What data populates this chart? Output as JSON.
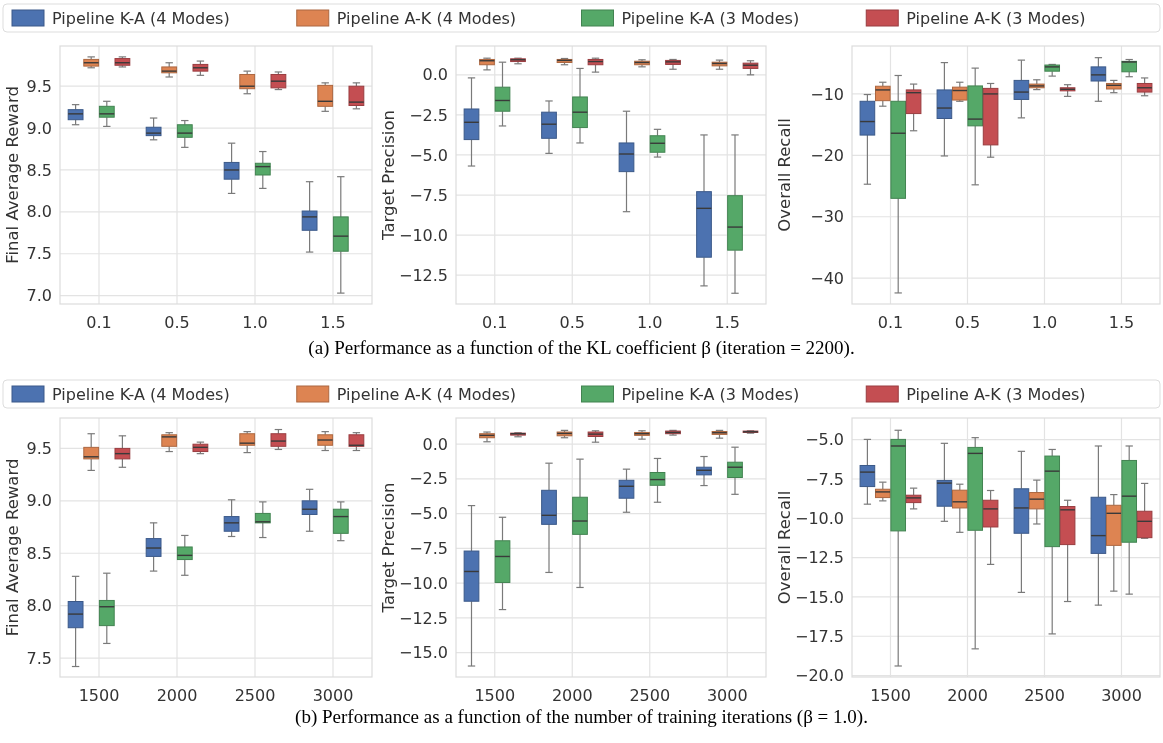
{
  "chart_data": [
    {
      "type": "box",
      "categories": [
        "0.1",
        "0.5",
        "1.0",
        "1.5"
      ],
      "ylabel": "Final Average Reward",
      "ylim": [
        6.9,
        9.98
      ],
      "yticks": [
        {
          "value": 7,
          "label": "7.0"
        },
        7.5,
        {
          "value": 8,
          "label": "8.0"
        },
        8.5,
        {
          "value": 9,
          "label": "9.0"
        },
        9.5
      ],
      "grid": true,
      "legend": "top",
      "annotations": [
        "(a) Performance as a function of the KL coefficient β (iteration = 2200)."
      ],
      "series": [
        {
          "name": "Pipeline K-A (4 Modes)",
          "color": "#4c72b0",
          "boxes": [
            {
              "low": 9.04,
              "q1": 9.1,
              "median": 9.17,
              "q3": 9.22,
              "high": 9.28
            },
            {
              "low": 8.86,
              "q1": 8.91,
              "median": 8.94,
              "q3": 9.01,
              "high": 9.12
            },
            {
              "low": 8.22,
              "q1": 8.39,
              "median": 8.5,
              "q3": 8.59,
              "high": 8.82
            },
            {
              "low": 7.52,
              "q1": 7.78,
              "median": 7.94,
              "q3": 8.01,
              "high": 8.36
            }
          ]
        },
        {
          "name": "Pipeline A-K (4 Modes)",
          "color": "#dd8452",
          "boxes": [
            {
              "low": 9.72,
              "q1": 9.74,
              "median": 9.78,
              "q3": 9.82,
              "high": 9.85
            },
            {
              "low": 9.61,
              "q1": 9.66,
              "median": 9.68,
              "q3": 9.73,
              "high": 9.78
            },
            {
              "low": 9.41,
              "q1": 9.47,
              "median": 9.5,
              "q3": 9.64,
              "high": 9.68
            },
            {
              "low": 9.2,
              "q1": 9.26,
              "median": 9.32,
              "q3": 9.51,
              "high": 9.54
            }
          ]
        },
        {
          "name": "Pipeline K-A (3 Modes)",
          "color": "#55a868",
          "boxes": [
            {
              "low": 9.02,
              "q1": 9.13,
              "median": 9.17,
              "q3": 9.26,
              "high": 9.32
            },
            {
              "low": 8.77,
              "q1": 8.89,
              "median": 8.94,
              "q3": 9.04,
              "high": 9.09
            },
            {
              "low": 8.28,
              "q1": 8.44,
              "median": 8.54,
              "q3": 8.58,
              "high": 8.72
            },
            {
              "low": 7.03,
              "q1": 7.53,
              "median": 7.71,
              "q3": 7.94,
              "high": 8.42
            }
          ]
        },
        {
          "name": "Pipeline A-K (3 Modes)",
          "color": "#c44e52",
          "boxes": [
            {
              "low": 9.73,
              "q1": 9.75,
              "median": 9.78,
              "q3": 9.83,
              "high": 9.85
            },
            {
              "low": 9.63,
              "q1": 9.68,
              "median": 9.72,
              "q3": 9.76,
              "high": 9.8
            },
            {
              "low": 9.46,
              "q1": 9.48,
              "median": 9.56,
              "q3": 9.64,
              "high": 9.67
            },
            {
              "low": 9.23,
              "q1": 9.27,
              "median": 9.31,
              "q3": 9.5,
              "high": 9.54
            }
          ]
        }
      ]
    },
    {
      "type": "box",
      "categories": [
        "0.1",
        "0.5",
        "1.0",
        "1.5"
      ],
      "ylabel": "Target Precision",
      "ylim": [
        -14.3,
        1.8
      ],
      "yticks": [
        {
          "value": -12.5,
          "label": "−12.5"
        },
        {
          "value": -10,
          "label": "−10.0"
        },
        {
          "value": -7.5,
          "label": "−7.5"
        },
        {
          "value": -5,
          "label": "−5.0"
        },
        {
          "value": -2.5,
          "label": "−2.5"
        },
        {
          "value": 0,
          "label": "0.0"
        }
      ],
      "grid": true,
      "series": [
        {
          "color": "#4c72b0",
          "boxes": [
            {
              "low": -5.69,
              "q1": -4.04,
              "median": -2.96,
              "q3": -2.13,
              "high": -0.19
            },
            {
              "low": -4.9,
              "q1": -3.96,
              "median": -3.08,
              "q3": -2.33,
              "high": -1.63
            },
            {
              "low": -8.54,
              "q1": -6.04,
              "median": -4.94,
              "q3": -4.25,
              "high": -2.27
            },
            {
              "low": -13.17,
              "q1": -11.38,
              "median": -8.33,
              "q3": -7.29,
              "high": -3.75
            }
          ]
        },
        {
          "color": "#dd8452",
          "boxes": [
            {
              "low": 0.31,
              "q1": 0.63,
              "median": 0.88,
              "q3": 0.96,
              "high": 1.04
            },
            {
              "low": 0.63,
              "q1": 0.77,
              "median": 0.9,
              "q3": 0.96,
              "high": 1.02
            },
            {
              "low": 0.5,
              "q1": 0.63,
              "median": 0.77,
              "q3": 0.85,
              "high": 0.94
            },
            {
              "low": 0.35,
              "q1": 0.56,
              "median": 0.71,
              "q3": 0.79,
              "high": 0.92
            }
          ]
        },
        {
          "color": "#55a868",
          "boxes": [
            {
              "low": -3.19,
              "q1": -2.27,
              "median": -1.6,
              "q3": -0.77,
              "high": 0.79
            },
            {
              "low": -4.25,
              "q1": -3.29,
              "median": -2.33,
              "q3": -1.38,
              "high": 0.4
            },
            {
              "low": -5.13,
              "q1": -4.83,
              "median": -4.27,
              "q3": -3.8,
              "high": -3.4
            },
            {
              "low": -13.63,
              "q1": -10.94,
              "median": -9.5,
              "q3": -7.54,
              "high": -3.75
            }
          ]
        },
        {
          "color": "#c44e52",
          "boxes": [
            {
              "low": 0.69,
              "q1": 0.83,
              "median": 0.94,
              "q3": 1.0,
              "high": 1.04
            },
            {
              "low": 0.17,
              "q1": 0.63,
              "median": 0.83,
              "q3": 0.96,
              "high": 1.04
            },
            {
              "low": 0.35,
              "q1": 0.65,
              "median": 0.81,
              "q3": 0.9,
              "high": 0.96
            },
            {
              "low": 0.0,
              "q1": 0.4,
              "median": 0.6,
              "q3": 0.73,
              "high": 0.88
            }
          ]
        }
      ]
    },
    {
      "type": "box",
      "categories": [
        "0.1",
        "0.5",
        "1.0",
        "1.5"
      ],
      "ylabel": "Overall Recall",
      "ylim": [
        -44.2,
        -2.2
      ],
      "yticks": [
        {
          "value": -40,
          "label": "−40"
        },
        {
          "value": -30,
          "label": "−30"
        },
        {
          "value": -20,
          "label": "−20"
        },
        {
          "value": -10,
          "label": "−10"
        }
      ],
      "grid": true,
      "series": [
        {
          "color": "#4c72b0",
          "boxes": [
            {
              "low": -24.7,
              "q1": -16.7,
              "median": -14.5,
              "q3": -11.2,
              "high": -10.1
            },
            {
              "low": -20.1,
              "q1": -14.0,
              "median": -12.3,
              "q3": -9.35,
              "high": -4.9
            },
            {
              "low": -13.9,
              "q1": -10.9,
              "median": -9.7,
              "q3": -7.8,
              "high": -4.5
            },
            {
              "low": -11.2,
              "q1": -7.9,
              "median": -6.9,
              "q3": -5.6,
              "high": -4.1
            }
          ]
        },
        {
          "color": "#dd8452",
          "boxes": [
            {
              "low": -12.0,
              "q1": -11.1,
              "median": -9.35,
              "q3": -8.75,
              "high": -8.1
            },
            {
              "low": -11.2,
              "q1": -11.0,
              "median": -9.45,
              "q3": -8.9,
              "high": -8.1
            },
            {
              "low": -9.3,
              "q1": -9.0,
              "median": -8.7,
              "q3": -8.4,
              "high": -7.7
            },
            {
              "low": -9.8,
              "q1": -9.2,
              "median": -8.6,
              "q3": -8.3,
              "high": -7.8
            }
          ]
        },
        {
          "color": "#55a868",
          "boxes": [
            {
              "low": -42.4,
              "q1": -27.0,
              "median": -16.4,
              "q3": -11.2,
              "high": -7.0
            },
            {
              "low": -24.8,
              "q1": -15.2,
              "median": -14.1,
              "q3": -8.7,
              "high": -5.8
            },
            {
              "low": -7.1,
              "q1": -6.3,
              "median": -5.6,
              "q3": -5.3,
              "high": -5.2
            },
            {
              "low": -7.2,
              "q1": -6.4,
              "median": -4.8,
              "q3": -4.7,
              "high": -4.4
            }
          ]
        },
        {
          "color": "#c44e52",
          "boxes": [
            {
              "low": -16.0,
              "q1": -13.2,
              "median": -9.8,
              "q3": -9.35,
              "high": -8.4
            },
            {
              "low": -20.3,
              "q1": -18.3,
              "median": -10.0,
              "q3": -9.1,
              "high": -8.3
            },
            {
              "low": -10.4,
              "q1": -9.5,
              "median": -9.25,
              "q3": -9.0,
              "high": -8.5
            },
            {
              "low": -10.3,
              "q1": -9.7,
              "median": -9.0,
              "q3": -8.3,
              "high": -7.4
            }
          ]
        }
      ]
    },
    {
      "type": "box",
      "categories": [
        "1500",
        "2000",
        "2500",
        "3000"
      ],
      "ylabel": "Final Average Reward",
      "ylim": [
        7.32,
        9.79
      ],
      "yticks": [
        7.5,
        {
          "value": 8,
          "label": "8.0"
        },
        8.5,
        {
          "value": 9,
          "label": "9.0"
        },
        9.5
      ],
      "grid": true,
      "legend": "top",
      "annotations": [
        "(b) Performance as a function of the number of training iterations (β = 1.0)."
      ],
      "series": [
        {
          "name": "Pipeline K-A (4 Modes)",
          "color": "#4c72b0",
          "boxes": [
            {
              "low": 7.42,
              "q1": 7.79,
              "median": 7.92,
              "q3": 8.04,
              "high": 8.28
            },
            {
              "low": 8.33,
              "q1": 8.47,
              "median": 8.55,
              "q3": 8.64,
              "high": 8.79
            },
            {
              "low": 8.66,
              "q1": 8.71,
              "median": 8.79,
              "q3": 8.85,
              "high": 9.01
            },
            {
              "low": 8.71,
              "q1": 8.87,
              "median": 8.92,
              "q3": 9.0,
              "high": 9.11
            }
          ]
        },
        {
          "name": "Pipeline A-K (4 Modes)",
          "color": "#dd8452",
          "boxes": [
            {
              "low": 9.29,
              "q1": 9.4,
              "median": 9.42,
              "q3": 9.51,
              "high": 9.64
            },
            {
              "low": 9.47,
              "q1": 9.52,
              "median": 9.61,
              "q3": 9.63,
              "high": 9.65
            },
            {
              "low": 9.46,
              "q1": 9.53,
              "median": 9.55,
              "q3": 9.64,
              "high": 9.66
            },
            {
              "low": 9.48,
              "q1": 9.53,
              "median": 9.58,
              "q3": 9.63,
              "high": 9.66
            }
          ]
        },
        {
          "name": "Pipeline K-A (3 Modes)",
          "color": "#55a868",
          "boxes": [
            {
              "low": 7.64,
              "q1": 7.81,
              "median": 7.99,
              "q3": 8.05,
              "high": 8.31
            },
            {
              "low": 8.29,
              "q1": 8.44,
              "median": 8.48,
              "q3": 8.56,
              "high": 8.67
            },
            {
              "low": 8.65,
              "q1": 8.79,
              "median": 8.8,
              "q3": 8.88,
              "high": 8.99
            },
            {
              "low": 8.62,
              "q1": 8.69,
              "median": 8.85,
              "q3": 8.92,
              "high": 8.99
            }
          ]
        },
        {
          "name": "Pipeline A-K (3 Modes)",
          "color": "#c44e52",
          "boxes": [
            {
              "low": 9.32,
              "q1": 9.4,
              "median": 9.45,
              "q3": 9.5,
              "high": 9.62
            },
            {
              "low": 9.45,
              "q1": 9.47,
              "median": 9.51,
              "q3": 9.54,
              "high": 9.56
            },
            {
              "low": 9.49,
              "q1": 9.52,
              "median": 9.57,
              "q3": 9.64,
              "high": 9.68
            },
            {
              "low": 9.48,
              "q1": 9.52,
              "median": 9.53,
              "q3": 9.63,
              "high": 9.65
            }
          ]
        }
      ]
    },
    {
      "type": "box",
      "categories": [
        "1500",
        "2000",
        "2500",
        "3000"
      ],
      "ylabel": "Target Precision",
      "ylim": [
        -16.75,
        1.88
      ],
      "yticks": [
        {
          "value": -15,
          "label": "−15.0"
        },
        {
          "value": -12.5,
          "label": "−12.5"
        },
        {
          "value": -10,
          "label": "−10.0"
        },
        {
          "value": -7.5,
          "label": "−7.5"
        },
        {
          "value": -5,
          "label": "−5.0"
        },
        {
          "value": -2.5,
          "label": "−2.5"
        },
        {
          "value": 0,
          "label": "0.0"
        }
      ],
      "grid": true,
      "series": [
        {
          "color": "#4c72b0",
          "boxes": [
            {
              "low": -15.96,
              "q1": -11.3,
              "median": -9.16,
              "q3": -7.69,
              "high": -4.42
            },
            {
              "low": -9.23,
              "q1": -5.77,
              "median": -5.12,
              "q3": -3.32,
              "high": -1.37
            },
            {
              "low": -4.9,
              "q1": -3.89,
              "median": -3.03,
              "q3": -2.6,
              "high": -1.8
            },
            {
              "low": -2.98,
              "q1": -2.21,
              "median": -1.88,
              "q3": -1.66,
              "high": -0.89
            }
          ]
        },
        {
          "color": "#dd8452",
          "boxes": [
            {
              "low": 0.17,
              "q1": 0.46,
              "median": 0.63,
              "q3": 0.75,
              "high": 0.87
            },
            {
              "low": 0.46,
              "q1": 0.6,
              "median": 0.77,
              "q3": 0.87,
              "high": 0.99
            },
            {
              "low": 0.36,
              "q1": 0.63,
              "median": 0.75,
              "q3": 0.84,
              "high": 0.96
            },
            {
              "low": 0.43,
              "q1": 0.7,
              "median": 0.82,
              "q3": 0.91,
              "high": 0.99
            }
          ]
        },
        {
          "color": "#55a868",
          "boxes": [
            {
              "low": -11.9,
              "q1": -9.95,
              "median": -8.08,
              "q3": -6.95,
              "high": -5.26
            },
            {
              "low": -10.31,
              "q1": -6.49,
              "median": -5.53,
              "q3": -3.82,
              "high": -1.08
            },
            {
              "low": -4.18,
              "q1": -2.96,
              "median": -2.55,
              "q3": -2.04,
              "high": -1.03
            },
            {
              "low": -3.61,
              "q1": -2.4,
              "median": -1.66,
              "q3": -1.3,
              "high": -0.22
            }
          ]
        },
        {
          "color": "#c44e52",
          "boxes": [
            {
              "low": 0.53,
              "q1": 0.65,
              "median": 0.75,
              "q3": 0.79,
              "high": 0.82
            },
            {
              "low": 0.14,
              "q1": 0.55,
              "median": 0.72,
              "q3": 0.87,
              "high": 0.96
            },
            {
              "low": 0.65,
              "q1": 0.75,
              "median": 0.84,
              "q3": 0.94,
              "high": 0.99
            },
            {
              "low": 0.79,
              "q1": 0.84,
              "median": 0.89,
              "q3": 0.94,
              "high": 0.96
            }
          ]
        }
      ]
    },
    {
      "type": "box",
      "categories": [
        "1500",
        "2000",
        "2500",
        "3000"
      ],
      "ylabel": "Overall Recall",
      "ylim": [
        -20.09,
        -3.62
      ],
      "yticks": [
        {
          "value": -20,
          "label": "−20.0"
        },
        {
          "value": -17.5,
          "label": "−17.5"
        },
        {
          "value": -15,
          "label": "−15.0"
        },
        {
          "value": -12.5,
          "label": "−12.5"
        },
        {
          "value": -10,
          "label": "−10.0"
        },
        {
          "value": -7.5,
          "label": "−7.5"
        },
        {
          "value": -5,
          "label": "−5.0"
        }
      ],
      "grid": true,
      "series": [
        {
          "color": "#4c72b0",
          "boxes": [
            {
              "low": -9.1,
              "q1": -7.98,
              "median": -7.06,
              "q3": -6.64,
              "high": -4.98
            },
            {
              "low": -10.19,
              "q1": -9.23,
              "median": -7.76,
              "q3": -7.59,
              "high": -5.23
            },
            {
              "low": -14.71,
              "q1": -10.95,
              "median": -9.34,
              "q3": -8.12,
              "high": -5.74
            },
            {
              "low": -15.52,
              "q1": -12.23,
              "median": -11.1,
              "q3": -8.66,
              "high": -5.4
            }
          ]
        },
        {
          "color": "#dd8452",
          "boxes": [
            {
              "low": -8.89,
              "q1": -8.68,
              "median": -8.32,
              "q3": -8.15,
              "high": -7.7
            },
            {
              "low": -10.89,
              "q1": -9.34,
              "median": -8.95,
              "q3": -8.21,
              "high": -7.83
            },
            {
              "low": -10.36,
              "q1": -9.4,
              "median": -8.78,
              "q3": -8.36,
              "high": -7.57
            },
            {
              "low": -14.63,
              "q1": -11.72,
              "median": -9.68,
              "q3": -9.17,
              "high": -8.49
            }
          ]
        },
        {
          "color": "#55a868",
          "boxes": [
            {
              "low": -19.39,
              "q1": -10.8,
              "median": -5.4,
              "q3": -4.98,
              "high": -4.4
            },
            {
              "low": -18.3,
              "q1": -10.76,
              "median": -5.87,
              "q3": -5.49,
              "high": -4.87
            },
            {
              "low": -17.35,
              "q1": -11.8,
              "median": -7.0,
              "q3": -6.04,
              "high": -5.62
            },
            {
              "low": -14.82,
              "q1": -11.52,
              "median": -8.59,
              "q3": -6.32,
              "high": -5.4
            }
          ]
        },
        {
          "color": "#c44e52",
          "boxes": [
            {
              "low": -9.4,
              "q1": -9.0,
              "median": -8.7,
              "q3": -8.53,
              "high": -8.08
            },
            {
              "low": -12.93,
              "q1": -10.55,
              "median": -9.4,
              "q3": -8.85,
              "high": -8.23
            },
            {
              "low": -15.29,
              "q1": -11.67,
              "median": -9.46,
              "q3": -9.25,
              "high": -8.85
            },
            {
              "low": -11.27,
              "q1": -11.23,
              "median": -10.19,
              "q3": -9.55,
              "high": -7.78
            }
          ]
        }
      ]
    }
  ]
}
